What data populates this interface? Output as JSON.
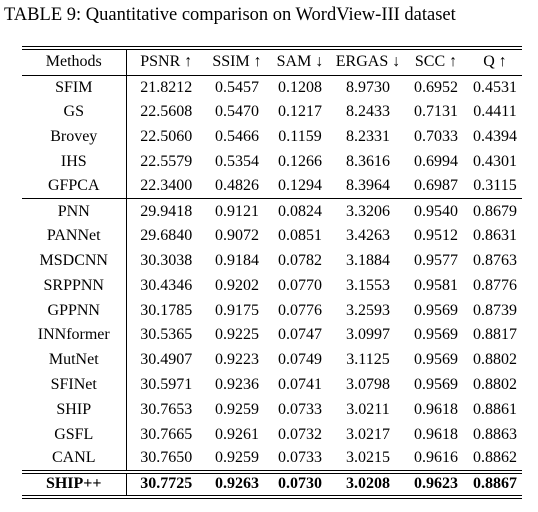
{
  "title": "TABLE 9: Quantitative comparison on WordView-III dataset",
  "table": {
    "header": [
      "Methods",
      "PSNR ↑",
      "SSIM ↑",
      "SAM ↓",
      "ERGAS ↓",
      "SCC ↑",
      "Q ↑"
    ],
    "groups": [
      [
        [
          "SFIM",
          "21.8212",
          "0.5457",
          "0.1208",
          "8.9730",
          "0.6952",
          "0.4531"
        ],
        [
          "GS",
          "22.5608",
          "0.5470",
          "0.1217",
          "8.2433",
          "0.7131",
          "0.4411"
        ],
        [
          "Brovey",
          "22.5060",
          "0.5466",
          "0.1159",
          "8.2331",
          "0.7033",
          "0.4394"
        ],
        [
          "IHS",
          "22.5579",
          "0.5354",
          "0.1266",
          "8.3616",
          "0.6994",
          "0.4301"
        ],
        [
          "GFPCA",
          "22.3400",
          "0.4826",
          "0.1294",
          "8.3964",
          "0.6987",
          "0.3115"
        ]
      ],
      [
        [
          "PNN",
          "29.9418",
          "0.9121",
          "0.0824",
          "3.3206",
          "0.9540",
          "0.8679"
        ],
        [
          "PANNet",
          "29.6840",
          "0.9072",
          "0.0851",
          "3.4263",
          "0.9512",
          "0.8631"
        ],
        [
          "MSDCNN",
          "30.3038",
          "0.9184",
          "0.0782",
          "3.1884",
          "0.9577",
          "0.8763"
        ],
        [
          "SRPPNN",
          "30.4346",
          "0.9202",
          "0.0770",
          "3.1553",
          "0.9581",
          "0.8776"
        ],
        [
          "GPPNN",
          "30.1785",
          "0.9175",
          "0.0776",
          "3.2593",
          "0.9569",
          "0.8739"
        ],
        [
          "INNformer",
          "30.5365",
          "0.9225",
          "0.0747",
          "3.0997",
          "0.9569",
          "0.8817"
        ],
        [
          "MutNet",
          "30.4907",
          "0.9223",
          "0.0749",
          "3.1125",
          "0.9569",
          "0.8802"
        ],
        [
          "SFINet",
          "30.5971",
          "0.9236",
          "0.0741",
          "3.0798",
          "0.9569",
          "0.8802"
        ],
        [
          "SHIP",
          "30.7653",
          "0.9259",
          "0.0733",
          "3.0211",
          "0.9618",
          "0.8861"
        ],
        [
          "GSFL",
          "30.7665",
          "0.9261",
          "0.0732",
          "3.0217",
          "0.9618",
          "0.8863"
        ],
        [
          "CANL",
          "30.7650",
          "0.9259",
          "0.0733",
          "3.0215",
          "0.9616",
          "0.8862"
        ]
      ],
      [
        [
          "SHIP++",
          "30.7725",
          "0.9263",
          "0.0730",
          "3.0208",
          "0.9623",
          "0.8867"
        ]
      ]
    ]
  }
}
